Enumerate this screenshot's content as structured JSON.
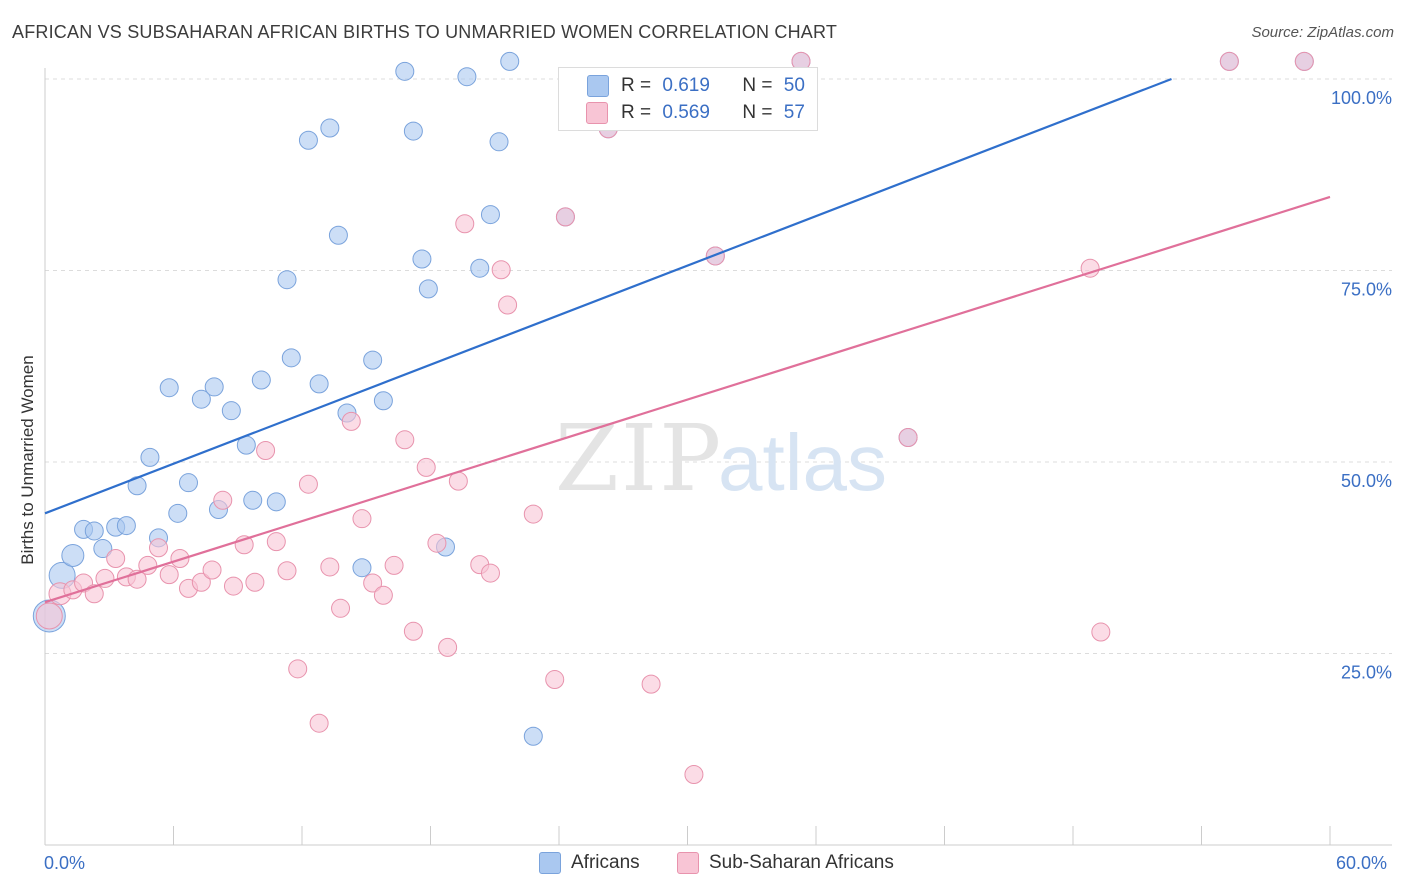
{
  "title": "AFRICAN VS SUBSAHARAN AFRICAN BIRTHS TO UNMARRIED WOMEN CORRELATION CHART",
  "source": "Source: ZipAtlas.com",
  "watermark": {
    "zip": "ZIP",
    "atlas": "atlas"
  },
  "legend_top": {
    "rows": [
      {
        "r_label": "R =",
        "r_value": "0.619",
        "n_label": "N =",
        "n_value": "50",
        "color": "#aac8f0",
        "border": "#7aa3dc"
      },
      {
        "r_label": "R =",
        "r_value": "0.569",
        "n_label": "N =",
        "n_value": "57",
        "color": "#f8c5d5",
        "border": "#e893ad"
      }
    ]
  },
  "legend_bottom": [
    {
      "label": "Africans",
      "color": "#aac8f0",
      "border": "#7aa3dc"
    },
    {
      "label": "Sub-Saharan Africans",
      "color": "#f8c5d5",
      "border": "#e893ad"
    }
  ],
  "x_tick_labels": {
    "left": "0.0%",
    "right": "60.0%"
  },
  "chart_data": {
    "type": "scatter",
    "title": "AFRICAN VS SUBSAHARAN AFRICAN BIRTHS TO UNMARRIED WOMEN CORRELATION CHART",
    "xlabel": "",
    "ylabel": "Births to Unmarried Women",
    "xlim": [
      0,
      60
    ],
    "ylim": [
      0,
      100
    ],
    "y_ticks": [
      {
        "value": 100,
        "label": "100.0%"
      },
      {
        "value": 75,
        "label": "75.0%"
      },
      {
        "value": 50,
        "label": "50.0%"
      },
      {
        "value": 25,
        "label": "25.0%"
      }
    ],
    "grid": true,
    "colors": {
      "Africans": "#3b78d0",
      "Sub-Saharan Africans": "#e07099"
    },
    "series": [
      {
        "name": "Africans",
        "fill": "#aac8f0",
        "stroke": "#7aa3dc",
        "line_color": "#2f6fcc",
        "trend": {
          "x": [
            0,
            52.6
          ],
          "y": [
            43.3,
            100
          ]
        },
        "points": [
          {
            "x": 0.2,
            "y": 29.9,
            "s": 16
          },
          {
            "x": 0.8,
            "y": 35.2,
            "s": 13
          },
          {
            "x": 1.3,
            "y": 37.8,
            "s": 11
          },
          {
            "x": 1.8,
            "y": 41.2,
            "s": 9
          },
          {
            "x": 2.3,
            "y": 41.0,
            "s": 9
          },
          {
            "x": 2.7,
            "y": 38.7,
            "s": 9
          },
          {
            "x": 3.3,
            "y": 41.5,
            "s": 9
          },
          {
            "x": 3.8,
            "y": 41.7,
            "s": 9
          },
          {
            "x": 4.3,
            "y": 46.9,
            "s": 9
          },
          {
            "x": 4.9,
            "y": 50.6,
            "s": 9
          },
          {
            "x": 5.8,
            "y": 59.7,
            "s": 9
          },
          {
            "x": 5.3,
            "y": 40.1,
            "s": 9
          },
          {
            "x": 6.2,
            "y": 43.3,
            "s": 9
          },
          {
            "x": 6.7,
            "y": 47.3,
            "s": 9
          },
          {
            "x": 7.3,
            "y": 58.2,
            "s": 9
          },
          {
            "x": 7.9,
            "y": 59.8,
            "s": 9
          },
          {
            "x": 8.1,
            "y": 43.8,
            "s": 9
          },
          {
            "x": 8.7,
            "y": 56.7,
            "s": 9
          },
          {
            "x": 9.4,
            "y": 52.2,
            "s": 9
          },
          {
            "x": 9.7,
            "y": 45.0,
            "s": 9
          },
          {
            "x": 10.1,
            "y": 60.7,
            "s": 9
          },
          {
            "x": 10.8,
            "y": 44.8,
            "s": 9
          },
          {
            "x": 11.3,
            "y": 73.8,
            "s": 9
          },
          {
            "x": 11.5,
            "y": 63.6,
            "s": 9
          },
          {
            "x": 12.3,
            "y": 92.0,
            "s": 9
          },
          {
            "x": 12.8,
            "y": 60.2,
            "s": 9
          },
          {
            "x": 13.3,
            "y": 93.6,
            "s": 9
          },
          {
            "x": 13.7,
            "y": 79.6,
            "s": 9
          },
          {
            "x": 14.1,
            "y": 56.4,
            "s": 9
          },
          {
            "x": 14.8,
            "y": 36.2,
            "s": 9
          },
          {
            "x": 15.3,
            "y": 63.3,
            "s": 9
          },
          {
            "x": 15.8,
            "y": 58.0,
            "s": 9
          },
          {
            "x": 16.8,
            "y": 101.0,
            "s": 9
          },
          {
            "x": 17.2,
            "y": 93.2,
            "s": 9
          },
          {
            "x": 17.6,
            "y": 76.5,
            "s": 9
          },
          {
            "x": 17.9,
            "y": 72.6,
            "s": 9
          },
          {
            "x": 18.7,
            "y": 38.9,
            "s": 9
          },
          {
            "x": 19.7,
            "y": 100.3,
            "s": 9
          },
          {
            "x": 20.3,
            "y": 75.3,
            "s": 9
          },
          {
            "x": 20.8,
            "y": 82.3,
            "s": 9
          },
          {
            "x": 21.2,
            "y": 91.8,
            "s": 9
          },
          {
            "x": 21.7,
            "y": 102.3,
            "s": 9
          },
          {
            "x": 22.8,
            "y": 14.2,
            "s": 9
          },
          {
            "x": 24.3,
            "y": 82.0,
            "s": 9
          },
          {
            "x": 26.3,
            "y": 93.5,
            "s": 9
          },
          {
            "x": 31.3,
            "y": 76.9,
            "s": 9
          },
          {
            "x": 35.3,
            "y": 102.3,
            "s": 9
          },
          {
            "x": 40.3,
            "y": 53.2,
            "s": 9
          },
          {
            "x": 55.3,
            "y": 102.3,
            "s": 9
          },
          {
            "x": 58.8,
            "y": 102.3,
            "s": 9
          }
        ]
      },
      {
        "name": "Sub-Saharan Africans",
        "fill": "#f8c5d5",
        "stroke": "#e893ad",
        "line_color": "#e0709a",
        "trend": {
          "x": [
            0,
            60
          ],
          "y": [
            31.7,
            84.6
          ]
        },
        "points": [
          {
            "x": 0.2,
            "y": 29.9,
            "s": 13
          },
          {
            "x": 0.7,
            "y": 32.8,
            "s": 11
          },
          {
            "x": 1.3,
            "y": 33.3,
            "s": 9
          },
          {
            "x": 1.8,
            "y": 34.2,
            "s": 9
          },
          {
            "x": 2.3,
            "y": 32.8,
            "s": 9
          },
          {
            "x": 2.8,
            "y": 34.8,
            "s": 9
          },
          {
            "x": 3.3,
            "y": 37.4,
            "s": 9
          },
          {
            "x": 3.8,
            "y": 35.0,
            "s": 9
          },
          {
            "x": 4.3,
            "y": 34.7,
            "s": 9
          },
          {
            "x": 4.8,
            "y": 36.5,
            "s": 9
          },
          {
            "x": 5.3,
            "y": 38.8,
            "s": 9
          },
          {
            "x": 5.8,
            "y": 35.3,
            "s": 9
          },
          {
            "x": 6.3,
            "y": 37.4,
            "s": 9
          },
          {
            "x": 6.7,
            "y": 33.5,
            "s": 9
          },
          {
            "x": 7.3,
            "y": 34.3,
            "s": 9
          },
          {
            "x": 7.8,
            "y": 35.9,
            "s": 9
          },
          {
            "x": 8.3,
            "y": 45.0,
            "s": 9
          },
          {
            "x": 8.8,
            "y": 33.8,
            "s": 9
          },
          {
            "x": 9.3,
            "y": 39.2,
            "s": 9
          },
          {
            "x": 9.8,
            "y": 34.3,
            "s": 9
          },
          {
            "x": 10.3,
            "y": 51.5,
            "s": 9
          },
          {
            "x": 10.8,
            "y": 39.6,
            "s": 9
          },
          {
            "x": 11.3,
            "y": 35.8,
            "s": 9
          },
          {
            "x": 11.8,
            "y": 23.0,
            "s": 9
          },
          {
            "x": 12.3,
            "y": 47.1,
            "s": 9
          },
          {
            "x": 12.8,
            "y": 15.9,
            "s": 9
          },
          {
            "x": 13.3,
            "y": 36.3,
            "s": 9
          },
          {
            "x": 13.8,
            "y": 30.9,
            "s": 9
          },
          {
            "x": 14.3,
            "y": 55.3,
            "s": 9
          },
          {
            "x": 14.8,
            "y": 42.6,
            "s": 9
          },
          {
            "x": 15.3,
            "y": 34.2,
            "s": 9
          },
          {
            "x": 15.8,
            "y": 32.6,
            "s": 9
          },
          {
            "x": 16.3,
            "y": 36.5,
            "s": 9
          },
          {
            "x": 16.8,
            "y": 52.9,
            "s": 9
          },
          {
            "x": 17.2,
            "y": 27.9,
            "s": 9
          },
          {
            "x": 17.8,
            "y": 49.3,
            "s": 9
          },
          {
            "x": 18.3,
            "y": 39.4,
            "s": 9
          },
          {
            "x": 18.8,
            "y": 25.8,
            "s": 9
          },
          {
            "x": 19.3,
            "y": 47.5,
            "s": 9
          },
          {
            "x": 19.6,
            "y": 81.1,
            "s": 9
          },
          {
            "x": 20.3,
            "y": 36.6,
            "s": 9
          },
          {
            "x": 20.8,
            "y": 35.5,
            "s": 9
          },
          {
            "x": 21.3,
            "y": 75.1,
            "s": 9
          },
          {
            "x": 21.6,
            "y": 70.5,
            "s": 9
          },
          {
            "x": 22.8,
            "y": 43.2,
            "s": 9
          },
          {
            "x": 23.8,
            "y": 21.6,
            "s": 9
          },
          {
            "x": 24.3,
            "y": 82.0,
            "s": 9
          },
          {
            "x": 26.3,
            "y": 93.5,
            "s": 9
          },
          {
            "x": 28.3,
            "y": 21.0,
            "s": 9
          },
          {
            "x": 30.3,
            "y": 9.2,
            "s": 9
          },
          {
            "x": 31.3,
            "y": 76.9,
            "s": 9
          },
          {
            "x": 35.3,
            "y": 102.3,
            "s": 9
          },
          {
            "x": 40.3,
            "y": 53.2,
            "s": 9
          },
          {
            "x": 48.8,
            "y": 75.3,
            "s": 9
          },
          {
            "x": 49.3,
            "y": 27.8,
            "s": 9
          },
          {
            "x": 55.3,
            "y": 102.3,
            "s": 9
          },
          {
            "x": 58.8,
            "y": 102.3,
            "s": 9
          }
        ]
      }
    ]
  }
}
